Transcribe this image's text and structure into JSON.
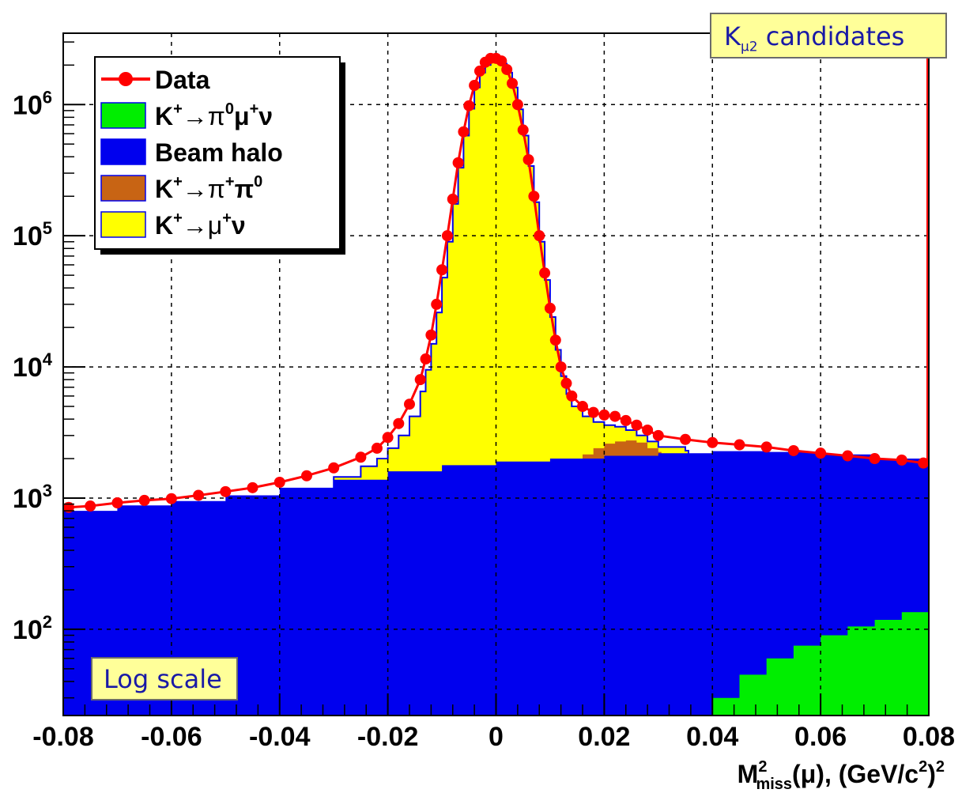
{
  "annotations": {
    "top_right_main": "K",
    "top_right_sub": "μ2",
    "top_right_rest": " candidates",
    "bottom_left": "Log scale"
  },
  "chart_data": {
    "type": "area",
    "x_axis": {
      "range": [
        -0.08,
        0.08
      ],
      "ticks": [
        "-0.08",
        "-0.06",
        "-0.04",
        "-0.02",
        "0",
        "0.02",
        "0.04",
        "0.06",
        "0.08"
      ],
      "title_main": "M",
      "title_sup": "2",
      "title_sub": "miss",
      "title_rest": "(μ), (GeV/c",
      "title_sup2": "2",
      "title_end": ")",
      "title_sup3": "2"
    },
    "y_axis": {
      "scale": "log",
      "range": [
        22,
        3500000
      ],
      "ticks": [
        {
          "value": 100,
          "base": "10",
          "exp": "2"
        },
        {
          "value": 1000,
          "base": "10",
          "exp": "3"
        },
        {
          "value": 10000,
          "base": "10",
          "exp": "4"
        },
        {
          "value": 100000,
          "base": "10",
          "exp": "5"
        },
        {
          "value": 1000000,
          "base": "10",
          "exp": "6"
        }
      ]
    },
    "grid": true,
    "legend": {
      "placement": "top-left",
      "entries": [
        {
          "id": "data",
          "label_main": "Data",
          "color": "#ff0000",
          "style": "points"
        },
        {
          "id": "k_pi0_mu_nu",
          "label_main": "K",
          "label_sup": "+",
          "label_mid": "→π",
          "label_sup2": "0",
          "label_mid2": "μ",
          "label_sup3": "+",
          "label_end": "ν",
          "color": "#00ee00",
          "style": "fill"
        },
        {
          "id": "beam_halo",
          "label_main": "Beam halo",
          "color": "#0000ee",
          "style": "fill"
        },
        {
          "id": "k_pi_pi0",
          "label_main": "K",
          "label_sup": "+",
          "label_mid": "→π",
          "label_sup2": "+",
          "label_mid2": "π",
          "label_sup3": "0",
          "label_end": "",
          "color": "#c86414",
          "style": "fill"
        },
        {
          "id": "k_mu_nu",
          "label_main": "K",
          "label_sup": "+",
          "label_mid": "→μ",
          "label_sup2": "+",
          "label_mid2": "ν",
          "label_sup3": "",
          "label_end": "",
          "color": "#ffff00",
          "style": "fill"
        }
      ]
    },
    "series": [
      {
        "name": "Data",
        "color": "#ff0000",
        "x": [
          -0.079,
          -0.075,
          -0.07,
          -0.065,
          -0.06,
          -0.055,
          -0.05,
          -0.045,
          -0.04,
          -0.035,
          -0.03,
          -0.025,
          -0.022,
          -0.02,
          -0.018,
          -0.016,
          -0.014,
          -0.013,
          -0.012,
          -0.011,
          -0.01,
          -0.009,
          -0.008,
          -0.007,
          -0.006,
          -0.005,
          -0.004,
          -0.003,
          -0.002,
          -0.001,
          0.0,
          0.001,
          0.002,
          0.003,
          0.004,
          0.005,
          0.006,
          0.007,
          0.008,
          0.009,
          0.01,
          0.011,
          0.012,
          0.013,
          0.014,
          0.016,
          0.018,
          0.02,
          0.022,
          0.024,
          0.026,
          0.028,
          0.03,
          0.035,
          0.04,
          0.045,
          0.05,
          0.055,
          0.06,
          0.065,
          0.07,
          0.075,
          0.079
        ],
        "y": [
          850,
          870,
          920,
          960,
          990,
          1050,
          1120,
          1200,
          1320,
          1480,
          1700,
          2050,
          2400,
          2900,
          3700,
          5200,
          8000,
          11500,
          17500,
          30000,
          55000,
          100000,
          190000,
          360000,
          620000,
          980000,
          1400000,
          1800000,
          2100000,
          2250000,
          2250000,
          2150000,
          1850000,
          1450000,
          1000000,
          640000,
          380000,
          200000,
          100000,
          52000,
          28000,
          16000,
          10000,
          7500,
          6000,
          5000,
          4500,
          4300,
          4200,
          3900,
          3600,
          3300,
          3000,
          2800,
          2650,
          2550,
          2450,
          2300,
          2200,
          2100,
          2000,
          1950,
          1850
        ]
      },
      {
        "name": "Beam halo",
        "color": "#0000ee",
        "x": [
          -0.08,
          -0.07,
          -0.06,
          -0.05,
          -0.04,
          -0.03,
          -0.02,
          -0.01,
          0.0,
          0.01,
          0.02,
          0.03,
          0.04,
          0.05,
          0.06,
          0.07,
          0.08
        ],
        "y": [
          800,
          880,
          950,
          1050,
          1200,
          1380,
          1600,
          1780,
          1900,
          2000,
          2100,
          2200,
          2280,
          2250,
          2150,
          2000,
          1800
        ]
      },
      {
        "name": "K+→μ+ν",
        "color": "#ffff00",
        "x": [
          -0.03,
          -0.025,
          -0.022,
          -0.02,
          -0.018,
          -0.016,
          -0.014,
          -0.013,
          -0.012,
          -0.011,
          -0.01,
          -0.009,
          -0.008,
          -0.007,
          -0.006,
          -0.005,
          -0.004,
          -0.003,
          -0.002,
          -0.001,
          0.0,
          0.001,
          0.002,
          0.003,
          0.004,
          0.005,
          0.006,
          0.007,
          0.008,
          0.009,
          0.01,
          0.011,
          0.012,
          0.013,
          0.014,
          0.016,
          0.018,
          0.02,
          0.022,
          0.024,
          0.026,
          0.028,
          0.03,
          0.035
        ],
        "y": [
          1450,
          1750,
          2000,
          2400,
          3000,
          4200,
          6500,
          9500,
          15000,
          26000,
          48000,
          90000,
          175000,
          330000,
          580000,
          930000,
          1350000,
          1750000,
          2000000,
          2150000,
          2150000,
          2050000,
          1750000,
          1350000,
          920000,
          580000,
          340000,
          180000,
          90000,
          46000,
          24000,
          13500,
          8500,
          6200,
          5000,
          4200,
          3800,
          3600,
          3500,
          3300,
          3000,
          2700,
          2450,
          2300
        ]
      },
      {
        "name": "K+→π+π0",
        "color": "#c86414",
        "x": [
          0.016,
          0.018,
          0.02,
          0.022,
          0.024,
          0.026,
          0.028,
          0.03
        ],
        "y": [
          2150,
          2400,
          2600,
          2700,
          2750,
          2650,
          2400,
          2250
        ]
      },
      {
        "name": "K+→π0μ+ν",
        "color": "#00ee00",
        "x": [
          0.038,
          0.04,
          0.045,
          0.05,
          0.055,
          0.06,
          0.065,
          0.07,
          0.075,
          0.08
        ],
        "y": [
          22,
          30,
          45,
          60,
          75,
          90,
          105,
          118,
          135,
          150
        ]
      }
    ]
  }
}
